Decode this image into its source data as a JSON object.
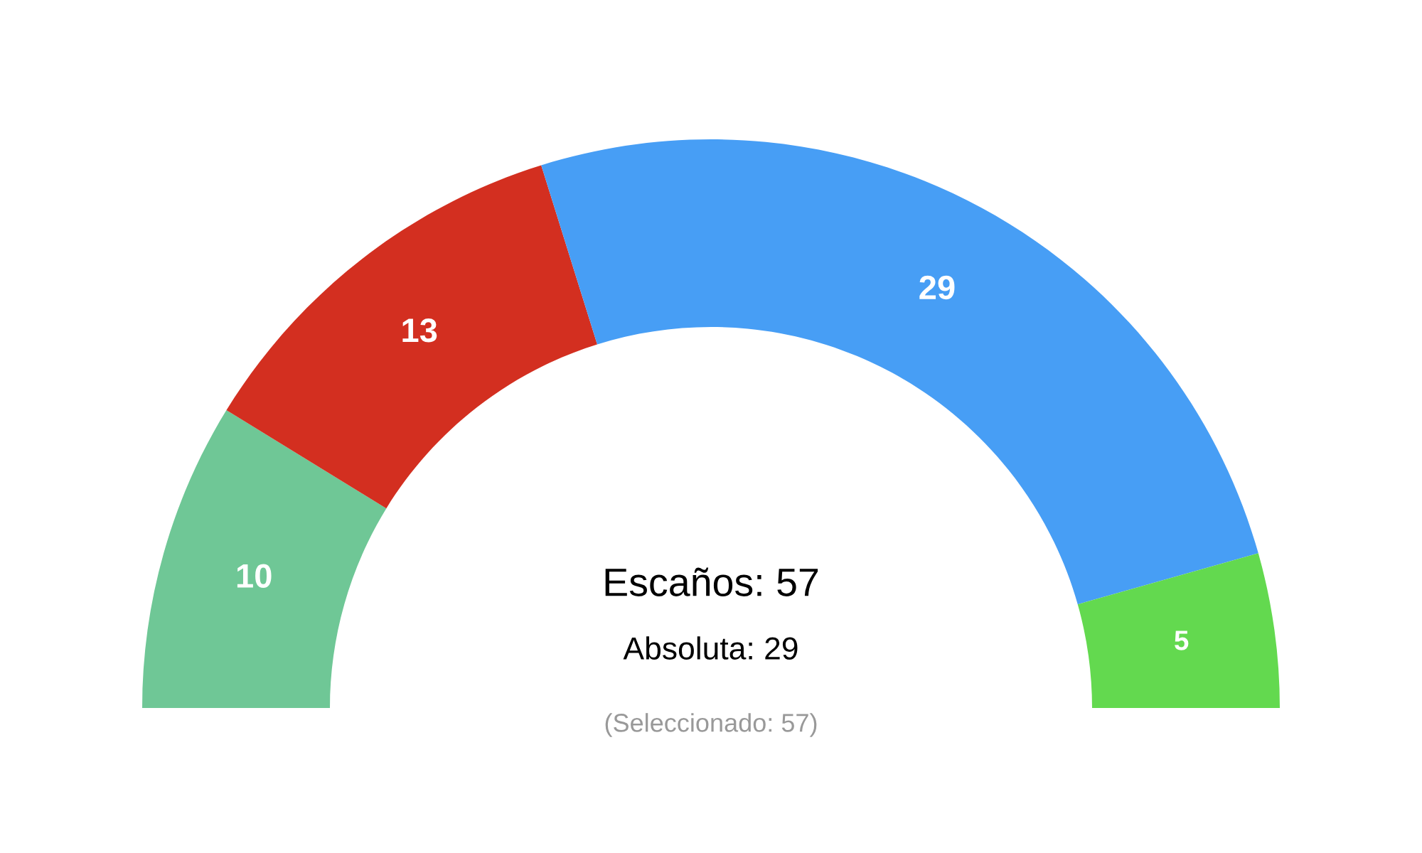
{
  "chart_data": {
    "type": "donut",
    "categories": [
      null,
      null,
      null,
      null
    ],
    "values": [
      10,
      13,
      29,
      5
    ],
    "colors": [
      "#6fc796",
      "#d32f20",
      "#479ef5",
      "#63d94f"
    ],
    "data_labels": true,
    "annotations": [
      "Escaños: 57",
      "Absoluta: 29",
      "(Seleccionado: 57)"
    ]
  }
}
